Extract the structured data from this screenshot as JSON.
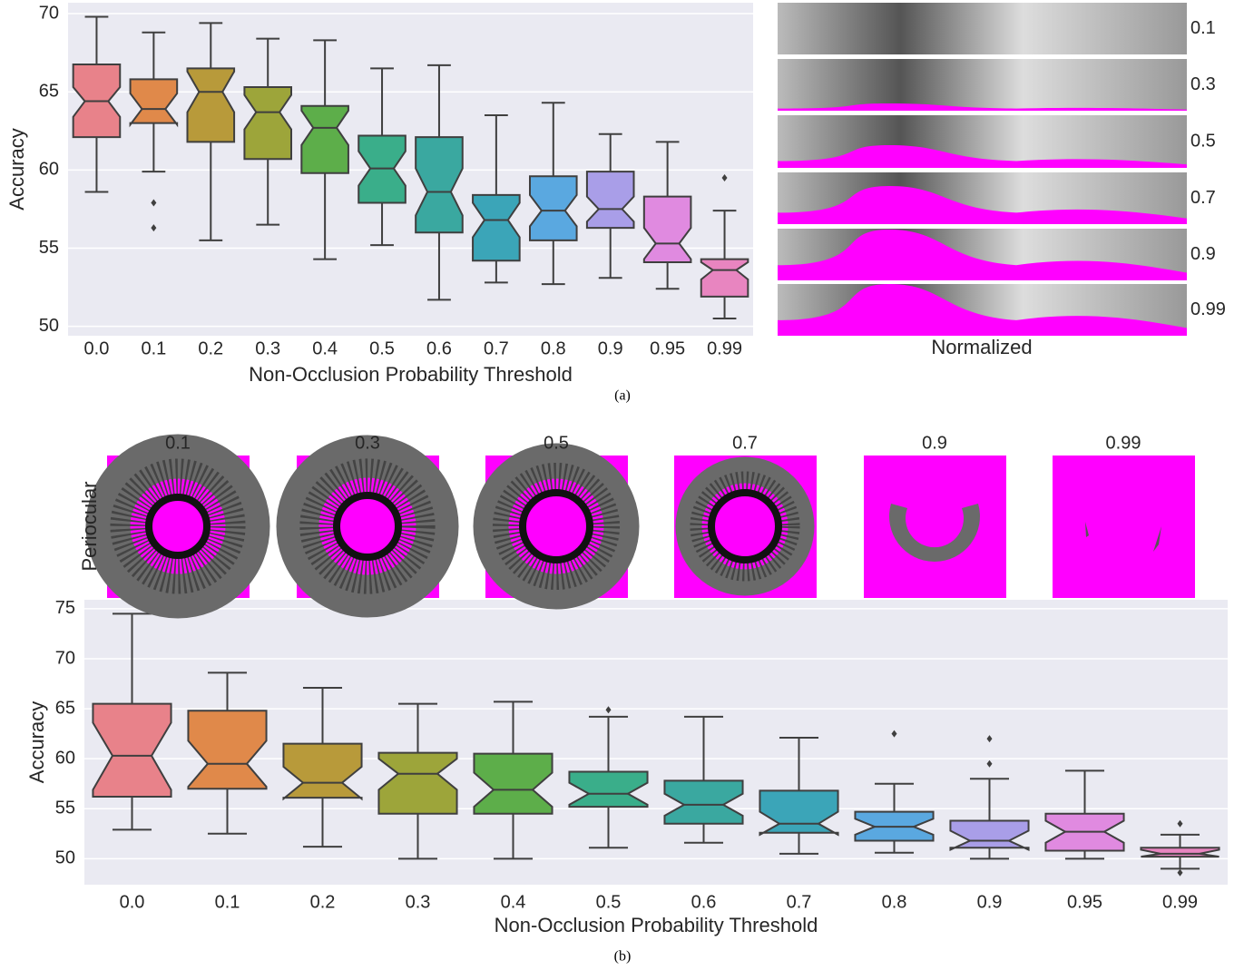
{
  "chart_data": [
    {
      "type": "box",
      "xlabel": "Non-Occlusion Probability Threshold",
      "ylabel": "Accuracy",
      "categories": [
        "0.0",
        "0.1",
        "0.2",
        "0.3",
        "0.4",
        "0.5",
        "0.6",
        "0.7",
        "0.8",
        "0.9",
        "0.95",
        "0.99"
      ],
      "colors": [
        "#e8828a",
        "#e0894a",
        "#b89a3a",
        "#9da53a",
        "#5dae4a",
        "#3aae8a",
        "#3aa8a0",
        "#3ba5b8",
        "#5aa8e0",
        "#a99ee8",
        "#e08ae0",
        "#e885c0"
      ],
      "boxes": [
        {
          "whislo": 58.6,
          "q1": 62.1,
          "med": 64.4,
          "q3": 66.75,
          "whishi": 69.8,
          "notch": [
            63.4,
            65.3
          ],
          "fliers": []
        },
        {
          "whislo": 59.9,
          "q1": 63.0,
          "med": 63.9,
          "q3": 65.8,
          "whishi": 68.8,
          "notch": [
            62.9,
            64.9
          ],
          "fliers": [
            57.9,
            56.3
          ]
        },
        {
          "whislo": 55.5,
          "q1": 61.8,
          "med": 65.0,
          "q3": 66.5,
          "whishi": 69.4,
          "notch": [
            63.7,
            66.3
          ],
          "fliers": []
        },
        {
          "whislo": 56.5,
          "q1": 60.7,
          "med": 63.7,
          "q3": 65.3,
          "whishi": 68.4,
          "notch": [
            62.6,
            64.8
          ],
          "fliers": []
        },
        {
          "whislo": 54.3,
          "q1": 59.8,
          "med": 62.7,
          "q3": 64.1,
          "whishi": 68.3,
          "notch": [
            61.6,
            63.8
          ],
          "fliers": []
        },
        {
          "whislo": 55.2,
          "q1": 57.9,
          "med": 60.1,
          "q3": 62.2,
          "whishi": 66.5,
          "notch": [
            59.0,
            61.2
          ],
          "fliers": []
        },
        {
          "whislo": 51.7,
          "q1": 56.0,
          "med": 58.6,
          "q3": 62.1,
          "whishi": 66.7,
          "notch": [
            57.1,
            60.1
          ],
          "fliers": []
        },
        {
          "whislo": 52.8,
          "q1": 54.2,
          "med": 56.8,
          "q3": 58.4,
          "whishi": 63.5,
          "notch": [
            55.7,
            57.9
          ],
          "fliers": []
        },
        {
          "whislo": 52.7,
          "q1": 55.5,
          "med": 57.4,
          "q3": 59.6,
          "whishi": 64.3,
          "notch": [
            56.4,
            58.4
          ],
          "fliers": []
        },
        {
          "whislo": 53.1,
          "q1": 56.3,
          "med": 57.5,
          "q3": 59.9,
          "whishi": 62.3,
          "notch": [
            56.7,
            58.3
          ],
          "fliers": []
        },
        {
          "whislo": 52.4,
          "q1": 54.1,
          "med": 55.3,
          "q3": 58.3,
          "whishi": 61.8,
          "notch": [
            54.3,
            56.3
          ],
          "fliers": []
        },
        {
          "whislo": 50.5,
          "q1": 51.9,
          "med": 53.6,
          "q3": 54.3,
          "whishi": 57.4,
          "notch": [
            53.0,
            54.1
          ],
          "fliers": [
            59.5
          ]
        }
      ],
      "ylim": [
        49.4,
        70.7
      ],
      "yticks": [
        50,
        55,
        60,
        65,
        70
      ],
      "grid": true,
      "caption": "(a)"
    },
    {
      "type": "box",
      "xlabel": "Non-Occlusion Probability Threshold",
      "ylabel": "Accuracy",
      "categories": [
        "0.0",
        "0.1",
        "0.2",
        "0.3",
        "0.4",
        "0.5",
        "0.6",
        "0.7",
        "0.8",
        "0.9",
        "0.95",
        "0.99"
      ],
      "colors": [
        "#e8828a",
        "#e0894a",
        "#b89a3a",
        "#9da53a",
        "#5dae4a",
        "#3aae8a",
        "#3aa8a0",
        "#3ba5b8",
        "#5aa8e0",
        "#a99ee8",
        "#e08ae0",
        "#e885c0"
      ],
      "boxes": [
        {
          "whislo": 52.9,
          "q1": 56.2,
          "med": 60.3,
          "q3": 65.5,
          "whishi": 74.5,
          "notch": [
            56.9,
            63.6
          ],
          "fliers": []
        },
        {
          "whislo": 52.5,
          "q1": 57.0,
          "med": 59.5,
          "q3": 64.8,
          "whishi": 68.6,
          "notch": [
            57.2,
            61.8
          ],
          "fliers": []
        },
        {
          "whislo": 51.2,
          "q1": 56.1,
          "med": 57.6,
          "q3": 61.5,
          "whishi": 67.1,
          "notch": [
            56.0,
            59.2
          ],
          "fliers": []
        },
        {
          "whislo": 50.0,
          "q1": 54.5,
          "med": 58.5,
          "q3": 60.6,
          "whishi": 65.5,
          "notch": [
            56.9,
            60.0
          ],
          "fliers": []
        },
        {
          "whislo": 50.0,
          "q1": 54.5,
          "med": 56.9,
          "q3": 60.5,
          "whishi": 65.7,
          "notch": [
            55.2,
            58.6
          ],
          "fliers": []
        },
        {
          "whislo": 51.1,
          "q1": 55.2,
          "med": 56.5,
          "q3": 58.7,
          "whishi": 64.2,
          "notch": [
            55.4,
            57.6
          ],
          "fliers": [
            64.9
          ]
        },
        {
          "whislo": 51.6,
          "q1": 53.5,
          "med": 55.4,
          "q3": 57.8,
          "whishi": 64.2,
          "notch": [
            54.3,
            56.5
          ],
          "fliers": []
        },
        {
          "whislo": 50.5,
          "q1": 52.6,
          "med": 53.5,
          "q3": 56.8,
          "whishi": 62.1,
          "notch": [
            52.4,
            54.7
          ],
          "fliers": []
        },
        {
          "whislo": 50.6,
          "q1": 51.8,
          "med": 53.2,
          "q3": 54.7,
          "whishi": 57.5,
          "notch": [
            52.4,
            54.0
          ],
          "fliers": [
            62.5
          ]
        },
        {
          "whislo": 50.0,
          "q1": 51.1,
          "med": 51.8,
          "q3": 53.8,
          "whishi": 58.0,
          "notch": [
            50.9,
            52.8
          ],
          "fliers": [
            62.0,
            59.5
          ]
        },
        {
          "whislo": 50.0,
          "q1": 50.8,
          "med": 52.7,
          "q3": 54.5,
          "whishi": 58.8,
          "notch": [
            51.6,
            53.8
          ],
          "fliers": []
        },
        {
          "whislo": 49.0,
          "q1": 50.2,
          "med": 50.5,
          "q3": 51.1,
          "whishi": 52.4,
          "notch": [
            50.2,
            50.9
          ],
          "fliers": [
            53.5,
            48.6
          ]
        }
      ],
      "ylim": [
        47.4,
        75.9
      ],
      "yticks": [
        50,
        55,
        60,
        65,
        70,
        75
      ],
      "grid": true,
      "caption": "(b)"
    }
  ],
  "panels": {
    "normalized": {
      "labels": [
        "0.1",
        "0.3",
        "0.5",
        "0.7",
        "0.9",
        "0.99"
      ],
      "xlabel": "Normalized"
    },
    "periocular": {
      "labels": [
        "0.1",
        "0.3",
        "0.5",
        "0.7",
        "0.9",
        "0.99"
      ],
      "ylabel": "Periocular"
    }
  }
}
